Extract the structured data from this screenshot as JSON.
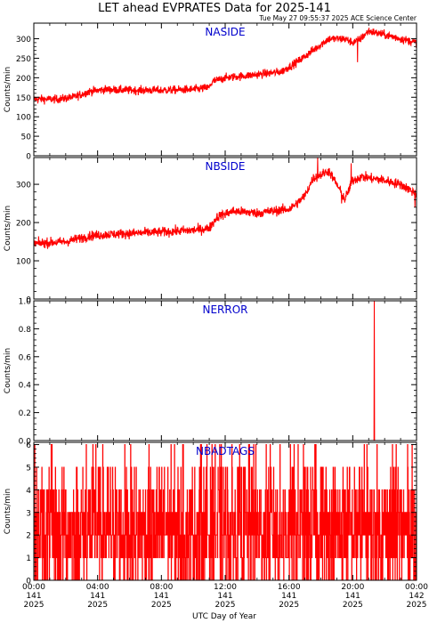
{
  "title": "LET ahead EVPRATES Data for 2025-141",
  "timestamp": "Tue May 27 09:55:37 2025 ACE Science Center",
  "xlabel": "UTC Day of Year",
  "colors": {
    "trace": "#ff0000",
    "panel_label": "#0000cc",
    "axis": "#000000"
  },
  "chart_data": [
    {
      "type": "line",
      "panel_label": "NASIDE",
      "ylabel": "Counts/min",
      "ylim": [
        0,
        340
      ],
      "yticks": [
        0,
        50,
        100,
        150,
        200,
        250,
        300
      ],
      "ytick_labels": [
        "0",
        "50",
        "100",
        "150",
        "200",
        "250",
        "300"
      ],
      "xlim_hours": [
        0,
        24
      ],
      "profile": [
        [
          0,
          145
        ],
        [
          1.5,
          145
        ],
        [
          2.5,
          150
        ],
        [
          3.5,
          165
        ],
        [
          4.5,
          170
        ],
        [
          6,
          168
        ],
        [
          8,
          168
        ],
        [
          10,
          170
        ],
        [
          11,
          175
        ],
        [
          11.2,
          190
        ],
        [
          12,
          200
        ],
        [
          14,
          208
        ],
        [
          15.5,
          215
        ],
        [
          16.5,
          240
        ],
        [
          17,
          255
        ],
        [
          18,
          285
        ],
        [
          18.5,
          300
        ],
        [
          19.5,
          300
        ],
        [
          20,
          290
        ],
        [
          20.5,
          300
        ],
        [
          21,
          320
        ],
        [
          22,
          310
        ],
        [
          23,
          300
        ],
        [
          24,
          290
        ]
      ],
      "noise": 10,
      "spikes": [
        [
          20.3,
          240
        ]
      ]
    },
    {
      "type": "line",
      "panel_label": "NBSIDE",
      "ylabel": "Counts/min",
      "ylim": [
        0,
        370
      ],
      "yticks": [
        0,
        100,
        200,
        300
      ],
      "ytick_labels": [
        "0",
        "100",
        "200",
        "300"
      ],
      "xlim_hours": [
        0,
        24
      ],
      "profile": [
        [
          0,
          145
        ],
        [
          2,
          150
        ],
        [
          3.5,
          165
        ],
        [
          5,
          170
        ],
        [
          8,
          175
        ],
        [
          10,
          180
        ],
        [
          11,
          185
        ],
        [
          11.5,
          215
        ],
        [
          12.5,
          230
        ],
        [
          14,
          225
        ],
        [
          16,
          235
        ],
        [
          16.5,
          250
        ],
        [
          17,
          270
        ],
        [
          17.5,
          315
        ],
        [
          18.5,
          335
        ],
        [
          19,
          300
        ],
        [
          19.5,
          260
        ],
        [
          20,
          310
        ],
        [
          20.5,
          320
        ],
        [
          22,
          310
        ],
        [
          23,
          300
        ],
        [
          24,
          275
        ]
      ],
      "noise": 12,
      "spikes": [
        [
          19.3,
          250
        ],
        [
          23.9,
          240
        ],
        [
          17.8,
          370
        ],
        [
          19.9,
          355
        ]
      ]
    },
    {
      "type": "line",
      "panel_label": "NERROR",
      "ylabel": "Counts/min",
      "ylim": [
        0,
        1
      ],
      "yticks": [
        0.0,
        0.2,
        0.4,
        0.6,
        0.8,
        1.0
      ],
      "ytick_labels": [
        "0.0",
        "0.2",
        "0.4",
        "0.6",
        "0.8",
        "1.0"
      ],
      "xlim_hours": [
        0,
        24
      ],
      "constant": 0,
      "spikes": [
        [
          21.35,
          1
        ]
      ]
    },
    {
      "type": "line",
      "panel_label": "NBADTAGS",
      "ylabel": "Counts/min",
      "ylim": [
        0,
        6.1
      ],
      "yticks": [
        0,
        1,
        2,
        3,
        4,
        5,
        6
      ],
      "ytick_labels": [
        "0",
        "1",
        "2",
        "3",
        "4",
        "5",
        "6"
      ],
      "xlim_hours": [
        0,
        24
      ],
      "discrete_levels": [
        0,
        1,
        2,
        3,
        4,
        5,
        6
      ],
      "level_weights": [
        0.14,
        0.2,
        0.24,
        0.2,
        0.13,
        0.07,
        0.02
      ],
      "spikes": [
        [
          3.3,
          6
        ],
        [
          3.9,
          6
        ],
        [
          13.8,
          6
        ],
        [
          17.7,
          6
        ],
        [
          20.9,
          6
        ]
      ]
    }
  ],
  "xticks": [
    {
      "time": "00:00",
      "day": "141",
      "year": "2025",
      "hour": 0
    },
    {
      "time": "04:00",
      "day": "141",
      "year": "2025",
      "hour": 4
    },
    {
      "time": "08:00",
      "day": "141",
      "year": "2025",
      "hour": 8
    },
    {
      "time": "12:00",
      "day": "141",
      "year": "2025",
      "hour": 12
    },
    {
      "time": "16:00",
      "day": "141",
      "year": "2025",
      "hour": 16
    },
    {
      "time": "20:00",
      "day": "141",
      "year": "2025",
      "hour": 20
    },
    {
      "time": "00:00",
      "day": "142",
      "year": "2025",
      "hour": 24
    }
  ]
}
